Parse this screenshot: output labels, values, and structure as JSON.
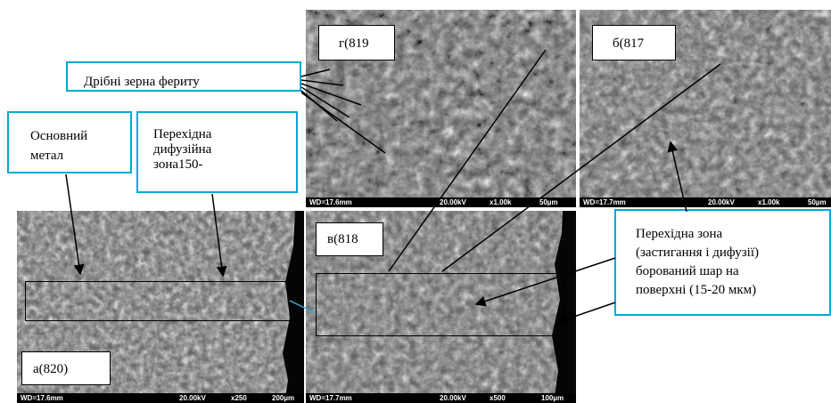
{
  "labels": {
    "fine_grains": "Дрібні зерна фериту",
    "base_metal_line1": "Основний",
    "base_metal_line2": "метал",
    "diffusion_line1": "Перехідна",
    "diffusion_line2": "дифузійна",
    "diffusion_line3": "зона150-",
    "transition_line1": "Перехідна зона",
    "transition_line2": "(застигання і дифузії)",
    "transition_line3": "борований шар на",
    "transition_line4": "поверхні (15-20 мкм)"
  },
  "panels": {
    "a": {
      "tag": "а(820)",
      "wd": "WD=17.6mm",
      "kv": "20.00kV",
      "mag": "x250",
      "scale": "200µm"
    },
    "b": {
      "tag": "б(817",
      "wd": "WD=17.7mm",
      "kv": "20.00kV",
      "mag": "x1.00k",
      "scale": "50µm"
    },
    "v": {
      "tag": "в(818",
      "wd": "WD=17.7mm",
      "kv": "20.00kV",
      "mag": "x500",
      "scale": "100µm"
    },
    "g": {
      "tag": "г(819",
      "wd": "WD=17.6mm",
      "kv": "20.00kV",
      "mag": "x1.00k",
      "scale": "50µm"
    }
  },
  "colors": {
    "label_border": "#00a9d6",
    "sem_dark": "#1c1c1c",
    "sem_light": "#d8d8d8",
    "bar": "#000000"
  }
}
